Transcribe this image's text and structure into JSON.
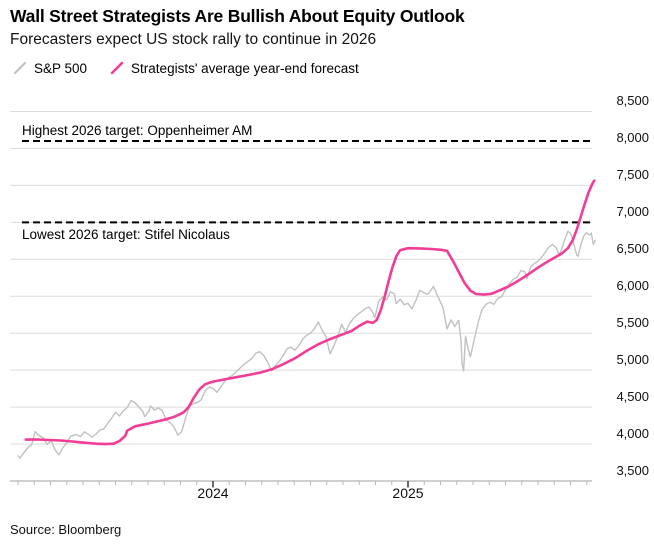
{
  "source": {
    "label": "Source: Bloomberg"
  },
  "chart_data": {
    "type": "line",
    "title": "Wall Street Strategists Are Bullish About Equity Outlook",
    "subtitle": "Forecasters expect US stock rally to continue in 2026",
    "legend_position": "top-left",
    "grid": "horizontal",
    "y_axis": {
      "min": 3500,
      "max": 8500,
      "step": 500,
      "side": "right",
      "tick_labels": [
        "8,500",
        "8,000",
        "7,500",
        "7,000",
        "6,500",
        "6,000",
        "5,500",
        "5,000",
        "4,500",
        "4,000",
        "3,500"
      ]
    },
    "x_axis": {
      "start_year_decimal": 2023.0,
      "end_year_decimal": 2025.97,
      "minor_tick_interval_months": 1,
      "year_ticks": [
        {
          "label": "2024",
          "t": 2024.0
        },
        {
          "label": "2025",
          "t": 2025.0
        }
      ]
    },
    "reference_lines": [
      {
        "label": "Highest 2026 target: Oppenheimer AM",
        "value": 8100,
        "style": "dashed",
        "color": "#000000"
      },
      {
        "label": "Lowest 2026 target: Stifel Nicolaus",
        "value": 7000,
        "style": "dashed",
        "color": "#000000"
      }
    ],
    "series": [
      {
        "name": "S&P 500",
        "color": "#c1c1c1",
        "width": 1.4,
        "points": [
          [
            2023.0,
            3840
          ],
          [
            2023.01,
            3810
          ],
          [
            2023.03,
            3880
          ],
          [
            2023.05,
            3950
          ],
          [
            2023.07,
            3990
          ],
          [
            2023.088,
            4170
          ],
          [
            2023.1,
            4130
          ],
          [
            2023.13,
            4080
          ],
          [
            2023.15,
            3995
          ],
          [
            2023.17,
            4050
          ],
          [
            2023.19,
            3920
          ],
          [
            2023.21,
            3855
          ],
          [
            2023.23,
            3950
          ],
          [
            2023.25,
            4020
          ],
          [
            2023.27,
            4105
          ],
          [
            2023.3,
            4130
          ],
          [
            2023.32,
            4100
          ],
          [
            2023.34,
            4165
          ],
          [
            2023.36,
            4135
          ],
          [
            2023.38,
            4090
          ],
          [
            2023.4,
            4135
          ],
          [
            2023.42,
            4190
          ],
          [
            2023.44,
            4205
          ],
          [
            2023.46,
            4280
          ],
          [
            2023.48,
            4350
          ],
          [
            2023.5,
            4430
          ],
          [
            2023.52,
            4380
          ],
          [
            2023.54,
            4450
          ],
          [
            2023.56,
            4495
          ],
          [
            2023.58,
            4590
          ],
          [
            2023.6,
            4560
          ],
          [
            2023.62,
            4500
          ],
          [
            2023.64,
            4440
          ],
          [
            2023.65,
            4370
          ],
          [
            2023.67,
            4440
          ],
          [
            2023.68,
            4515
          ],
          [
            2023.7,
            4460
          ],
          [
            2023.72,
            4490
          ],
          [
            2023.74,
            4450
          ],
          [
            2023.76,
            4330
          ],
          [
            2023.78,
            4290
          ],
          [
            2023.8,
            4230
          ],
          [
            2023.82,
            4120
          ],
          [
            2023.84,
            4170
          ],
          [
            2023.86,
            4360
          ],
          [
            2023.88,
            4510
          ],
          [
            2023.9,
            4550
          ],
          [
            2023.92,
            4560
          ],
          [
            2023.94,
            4600
          ],
          [
            2023.96,
            4720
          ],
          [
            2023.98,
            4770
          ],
          [
            2024.0,
            4755
          ],
          [
            2024.02,
            4700
          ],
          [
            2024.04,
            4770
          ],
          [
            2024.06,
            4850
          ],
          [
            2024.08,
            4900
          ],
          [
            2024.1,
            4930
          ],
          [
            2024.12,
            4980
          ],
          [
            2024.14,
            5030
          ],
          [
            2024.16,
            5080
          ],
          [
            2024.18,
            5120
          ],
          [
            2024.2,
            5160
          ],
          [
            2024.22,
            5230
          ],
          [
            2024.24,
            5250
          ],
          [
            2024.26,
            5200
          ],
          [
            2024.28,
            5110
          ],
          [
            2024.3,
            4990
          ],
          [
            2024.32,
            5060
          ],
          [
            2024.34,
            5120
          ],
          [
            2024.36,
            5200
          ],
          [
            2024.38,
            5290
          ],
          [
            2024.4,
            5310
          ],
          [
            2024.42,
            5270
          ],
          [
            2024.44,
            5330
          ],
          [
            2024.46,
            5420
          ],
          [
            2024.48,
            5470
          ],
          [
            2024.5,
            5500
          ],
          [
            2024.52,
            5560
          ],
          [
            2024.54,
            5650
          ],
          [
            2024.56,
            5540
          ],
          [
            2024.58,
            5450
          ],
          [
            2024.6,
            5220
          ],
          [
            2024.62,
            5330
          ],
          [
            2024.64,
            5460
          ],
          [
            2024.66,
            5620
          ],
          [
            2024.68,
            5510
          ],
          [
            2024.7,
            5630
          ],
          [
            2024.72,
            5700
          ],
          [
            2024.74,
            5750
          ],
          [
            2024.76,
            5790
          ],
          [
            2024.78,
            5830
          ],
          [
            2024.8,
            5855
          ],
          [
            2024.82,
            5780
          ],
          [
            2024.83,
            5710
          ],
          [
            2024.85,
            5930
          ],
          [
            2024.87,
            5990
          ],
          [
            2024.89,
            5950
          ],
          [
            2024.91,
            6060
          ],
          [
            2024.93,
            6030
          ],
          [
            2024.94,
            5900
          ],
          [
            2024.96,
            5960
          ],
          [
            2024.98,
            5885
          ],
          [
            2025.0,
            5905
          ],
          [
            2025.02,
            5830
          ],
          [
            2025.04,
            5940
          ],
          [
            2025.06,
            6080
          ],
          [
            2025.08,
            6050
          ],
          [
            2025.1,
            6025
          ],
          [
            2025.12,
            6090
          ],
          [
            2025.13,
            6135
          ],
          [
            2025.15,
            6010
          ],
          [
            2025.16,
            5960
          ],
          [
            2025.18,
            5840
          ],
          [
            2025.2,
            5560
          ],
          [
            2025.22,
            5680
          ],
          [
            2025.24,
            5590
          ],
          [
            2025.26,
            5675
          ],
          [
            2025.272,
            5400
          ],
          [
            2025.278,
            5075
          ],
          [
            2025.285,
            4990
          ],
          [
            2025.29,
            5210
          ],
          [
            2025.295,
            5460
          ],
          [
            2025.31,
            5280
          ],
          [
            2025.32,
            5180
          ],
          [
            2025.34,
            5420
          ],
          [
            2025.36,
            5650
          ],
          [
            2025.38,
            5820
          ],
          [
            2025.4,
            5890
          ],
          [
            2025.42,
            5920
          ],
          [
            2025.44,
            5890
          ],
          [
            2025.46,
            5970
          ],
          [
            2025.48,
            5995
          ],
          [
            2025.5,
            6090
          ],
          [
            2025.52,
            6170
          ],
          [
            2025.54,
            6230
          ],
          [
            2025.56,
            6260
          ],
          [
            2025.58,
            6350
          ],
          [
            2025.6,
            6330
          ],
          [
            2025.61,
            6240
          ],
          [
            2025.63,
            6400
          ],
          [
            2025.65,
            6450
          ],
          [
            2025.66,
            6460
          ],
          [
            2025.68,
            6510
          ],
          [
            2025.7,
            6580
          ],
          [
            2025.72,
            6660
          ],
          [
            2025.74,
            6700
          ],
          [
            2025.76,
            6655
          ],
          [
            2025.775,
            6560
          ],
          [
            2025.79,
            6650
          ],
          [
            2025.8,
            6740
          ],
          [
            2025.82,
            6880
          ],
          [
            2025.835,
            6850
          ],
          [
            2025.85,
            6710
          ],
          [
            2025.865,
            6560
          ],
          [
            2025.872,
            6540
          ],
          [
            2025.885,
            6680
          ],
          [
            2025.9,
            6810
          ],
          [
            2025.915,
            6860
          ],
          [
            2025.93,
            6830
          ],
          [
            2025.94,
            6855
          ],
          [
            2025.95,
            6700
          ],
          [
            2025.96,
            6760
          ]
        ]
      },
      {
        "name": "Strategists' average year-end forecast",
        "color": "#f23d96",
        "width": 2.6,
        "points": [
          [
            2023.04,
            4060
          ],
          [
            2023.1,
            4062
          ],
          [
            2023.16,
            4055
          ],
          [
            2023.22,
            4048
          ],
          [
            2023.28,
            4035
          ],
          [
            2023.34,
            4018
          ],
          [
            2023.4,
            4005
          ],
          [
            2023.45,
            4000
          ],
          [
            2023.49,
            4005
          ],
          [
            2023.52,
            4040
          ],
          [
            2023.55,
            4110
          ],
          [
            2023.56,
            4180
          ],
          [
            2023.6,
            4240
          ],
          [
            2023.64,
            4262
          ],
          [
            2023.68,
            4285
          ],
          [
            2023.72,
            4310
          ],
          [
            2023.76,
            4335
          ],
          [
            2023.8,
            4368
          ],
          [
            2023.82,
            4390
          ],
          [
            2023.85,
            4430
          ],
          [
            2023.875,
            4500
          ],
          [
            2023.9,
            4620
          ],
          [
            2023.93,
            4740
          ],
          [
            2023.96,
            4810
          ],
          [
            2024.0,
            4845
          ],
          [
            2024.06,
            4875
          ],
          [
            2024.12,
            4905
          ],
          [
            2024.18,
            4935
          ],
          [
            2024.24,
            4965
          ],
          [
            2024.3,
            5010
          ],
          [
            2024.36,
            5080
          ],
          [
            2024.42,
            5160
          ],
          [
            2024.48,
            5260
          ],
          [
            2024.54,
            5350
          ],
          [
            2024.6,
            5420
          ],
          [
            2024.66,
            5480
          ],
          [
            2024.71,
            5530
          ],
          [
            2024.75,
            5600
          ],
          [
            2024.79,
            5655
          ],
          [
            2024.82,
            5640
          ],
          [
            2024.84,
            5680
          ],
          [
            2024.86,
            5810
          ],
          [
            2024.88,
            5990
          ],
          [
            2024.9,
            6200
          ],
          [
            2024.92,
            6390
          ],
          [
            2024.94,
            6540
          ],
          [
            2024.96,
            6625
          ],
          [
            2025.0,
            6650
          ],
          [
            2025.06,
            6648
          ],
          [
            2025.12,
            6640
          ],
          [
            2025.17,
            6628
          ],
          [
            2025.2,
            6615
          ],
          [
            2025.23,
            6480
          ],
          [
            2025.26,
            6330
          ],
          [
            2025.29,
            6180
          ],
          [
            2025.32,
            6075
          ],
          [
            2025.35,
            6030
          ],
          [
            2025.39,
            6022
          ],
          [
            2025.43,
            6035
          ],
          [
            2025.47,
            6080
          ],
          [
            2025.51,
            6125
          ],
          [
            2025.55,
            6185
          ],
          [
            2025.59,
            6250
          ],
          [
            2025.63,
            6320
          ],
          [
            2025.67,
            6395
          ],
          [
            2025.71,
            6460
          ],
          [
            2025.75,
            6520
          ],
          [
            2025.79,
            6580
          ],
          [
            2025.82,
            6650
          ],
          [
            2025.845,
            6760
          ],
          [
            2025.865,
            6900
          ],
          [
            2025.885,
            7070
          ],
          [
            2025.905,
            7240
          ],
          [
            2025.925,
            7400
          ],
          [
            2025.945,
            7520
          ],
          [
            2025.955,
            7565
          ]
        ]
      }
    ]
  }
}
